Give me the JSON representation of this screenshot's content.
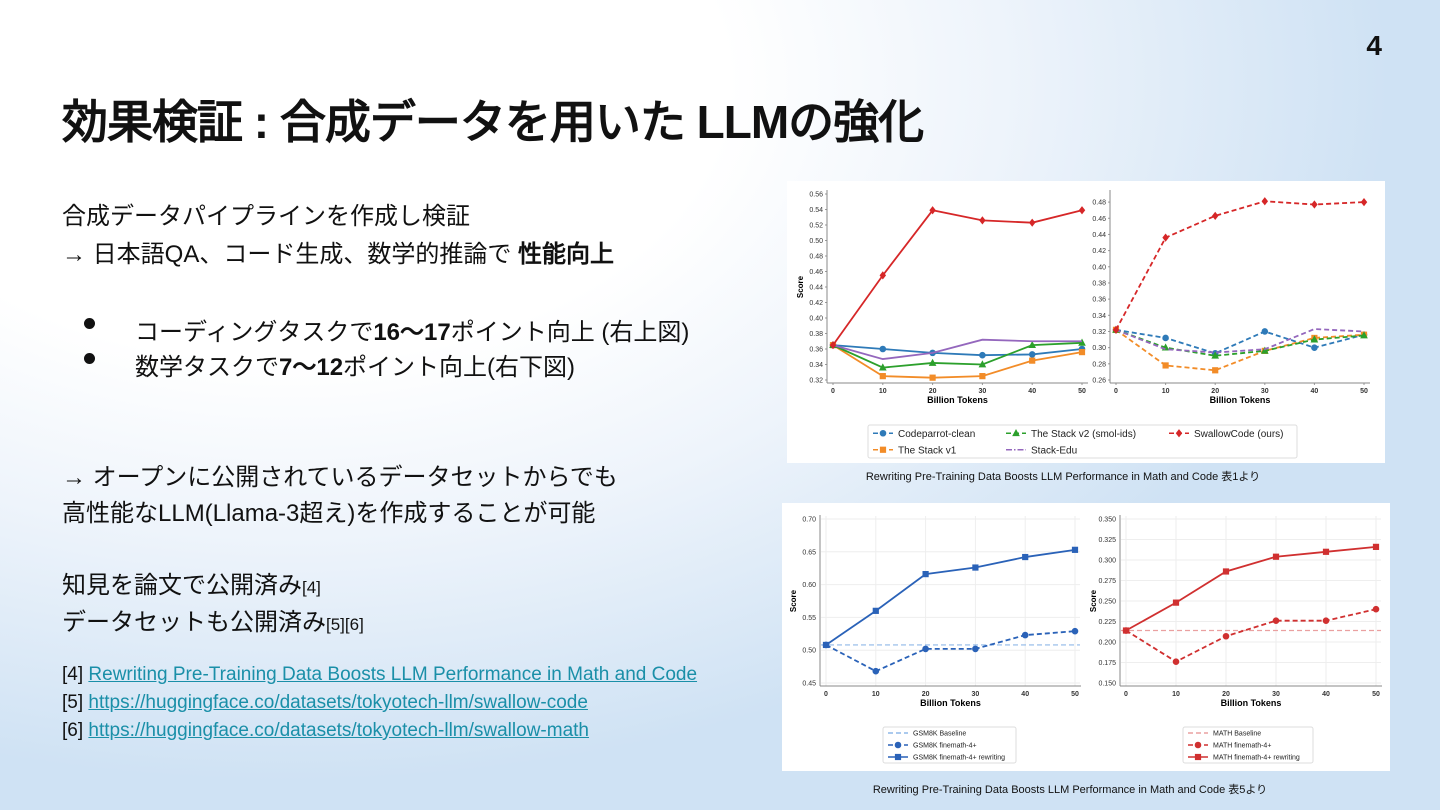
{
  "page_number": "4",
  "title": "効果検証 : 合成データを用いた LLMの強化",
  "intro": [
    [
      {
        "text": "合成データパイプラインを作成し検証"
      }
    ],
    [
      {
        "text": "→ 日本語QA、コード生成、数学的推論で "
      },
      {
        "text": "性能向上",
        "bold": true
      }
    ]
  ],
  "bullets": [
    [
      {
        "text": "コーディングタスクで"
      },
      {
        "text": "16〜17",
        "bold": true
      },
      {
        "text": "ポイント向上 (右上図)"
      }
    ],
    [
      {
        "text": "数学タスクで"
      },
      {
        "text": "7〜12",
        "bold": true
      },
      {
        "text": "ポイント向上(右下図)"
      }
    ]
  ],
  "claim": [
    [
      {
        "text": "→ オープンに公開されているデータセットからでも"
      }
    ],
    [
      {
        "text": "高性能なLLM(Llama-3超え)を作成することが可能"
      }
    ]
  ],
  "published": [
    [
      {
        "text": "知見を論文で公開済み"
      },
      {
        "text": "[4]",
        "small": true
      }
    ],
    [
      {
        "text": "データセットも公開済み"
      },
      {
        "text": "[5][6]",
        "small": true
      }
    ]
  ],
  "references": [
    {
      "tag": "[4]",
      "link": "Rewriting Pre-Training Data Boosts LLM Performance in Math and Code"
    },
    {
      "tag": "[5]",
      "link": "https://huggingface.co/datasets/tokyotech-llm/swallow-code"
    },
    {
      "tag": "[6]",
      "link": "https://huggingface.co/datasets/tokyotech-llm/swallow-math"
    }
  ],
  "figures": [
    {
      "caption": "Rewriting Pre-Training Data Boosts LLM Performance in Math and Code 表1より",
      "series": [
        {
          "name": "Codeparrot-clean",
          "color": "#2e7ab8",
          "marker": "circle",
          "linestyle": "dashed"
        },
        {
          "name": "The Stack v1",
          "color": "#f28c28",
          "marker": "square",
          "linestyle": "dashed"
        },
        {
          "name": "The Stack v2 (smol-ids)",
          "color": "#2ca02c",
          "marker": "triangle",
          "linestyle": "dashed"
        },
        {
          "name": "Stack-Edu",
          "color": "#9467bd",
          "marker": "none",
          "linestyle": "dashdot"
        },
        {
          "name": "SwallowCode (ours)",
          "color": "#d62728",
          "marker": "diamond",
          "linestyle": "dashed"
        }
      ],
      "panels": [
        {
          "ylabel": "Score",
          "xlabel": "Billion Tokens",
          "linestyle": "solid",
          "x": [
            0,
            10,
            20,
            30,
            40,
            50
          ],
          "xlim": [
            0,
            50
          ],
          "xticks": [
            0,
            10,
            20,
            30,
            40,
            50
          ],
          "ylim": [
            0.32,
            0.56
          ],
          "yticks": [
            0.32,
            0.34,
            0.36,
            0.38,
            {
              "value": 0.4,
              "label": "0.40"
            },
            0.42,
            0.44,
            0.46,
            0.48,
            {
              "value": 0.5,
              "label": "0.50"
            },
            0.52,
            0.54,
            0.56
          ],
          "values": [
            [
              0.365,
              0.36,
              0.355,
              0.352,
              0.353,
              0.36
            ],
            [
              0.365,
              0.325,
              0.323,
              0.325,
              0.345,
              0.356
            ],
            [
              0.365,
              0.336,
              0.342,
              0.34,
              0.365,
              0.368
            ],
            [
              0.365,
              0.347,
              0.355,
              0.372,
              0.37,
              0.37
            ],
            [
              0.365,
              0.455,
              0.539,
              0.526,
              0.523,
              0.539
            ]
          ]
        },
        {
          "xlabel": "Billion Tokens",
          "linestyle": "dashed",
          "x": [
            0,
            10,
            20,
            30,
            40,
            50
          ],
          "xlim": [
            0,
            50
          ],
          "xticks": [
            0,
            10,
            20,
            30,
            40,
            50
          ],
          "ylim": [
            0.26,
            0.49
          ],
          "yticks": [
            0.26,
            0.28,
            {
              "value": 0.3,
              "label": "0.30"
            },
            0.32,
            0.34,
            0.36,
            0.38,
            {
              "value": 0.4,
              "label": "0.40"
            },
            0.42,
            0.44,
            0.46,
            0.48
          ],
          "values": [
            [
              0.322,
              0.312,
              0.293,
              0.32,
              0.3,
              0.316
            ],
            [
              0.322,
              0.278,
              0.272,
              0.296,
              0.312,
              0.316
            ],
            [
              0.322,
              0.3,
              0.29,
              0.296,
              0.31,
              0.315
            ],
            [
              0.322,
              0.298,
              0.294,
              0.298,
              0.323,
              0.32
            ],
            [
              0.322,
              0.436,
              0.463,
              0.481,
              0.477,
              0.48
            ]
          ]
        }
      ]
    },
    {
      "caption": "Rewriting Pre-Training Data Boosts LLM Performance in Math and Code 表5より",
      "panels": [
        {
          "ylabel": "Score",
          "xlabel": "Billion Tokens",
          "grid": true,
          "x": [
            0,
            10,
            20,
            30,
            40,
            50
          ],
          "xlim": [
            0,
            50
          ],
          "xticks": [
            0,
            10,
            20,
            30,
            40,
            50
          ],
          "ylim": [
            0.45,
            0.7
          ],
          "yticks": [
            0.45,
            {
              "value": 0.5,
              "label": "0.50"
            },
            0.55,
            {
              "value": 0.6,
              "label": "0.60"
            },
            0.65,
            {
              "value": 0.7,
              "label": "0.70"
            }
          ],
          "series": [
            {
              "name": "GSM8K Baseline",
              "color": "#8fb8e8",
              "marker": "none",
              "linestyle": "dashed",
              "value": 0.508
            },
            {
              "name": "GSM8K finemath-4+",
              "color": "#2a62b8",
              "marker": "circle",
              "linestyle": "dashed",
              "values": [
                0.508,
                0.468,
                0.502,
                0.502,
                0.523,
                0.529
              ]
            },
            {
              "name": "GSM8K finemath-4+ rewriting",
              "color": "#2a62b8",
              "marker": "square",
              "linestyle": "solid",
              "values": [
                0.508,
                0.56,
                0.616,
                0.626,
                0.642,
                0.653
              ]
            }
          ]
        },
        {
          "ylabel": "Score",
          "xlabel": "Billion Tokens",
          "grid": true,
          "x": [
            0,
            10,
            20,
            30,
            40,
            50
          ],
          "xlim": [
            0,
            50
          ],
          "xticks": [
            0,
            10,
            20,
            30,
            40,
            50
          ],
          "ylim": [
            0.15,
            0.35
          ],
          "yticks": [
            {
              "value": 0.15,
              "label": "0.150"
            },
            0.175,
            {
              "value": 0.2,
              "label": "0.200"
            },
            0.225,
            {
              "value": 0.25,
              "label": "0.250"
            },
            0.275,
            {
              "value": 0.3,
              "label": "0.300"
            },
            0.325,
            {
              "value": 0.35,
              "label": "0.350"
            }
          ],
          "series": [
            {
              "name": "MATH Baseline",
              "color": "#eaa0a0",
              "marker": "none",
              "linestyle": "dashed",
              "value": 0.214
            },
            {
              "name": "MATH finemath-4+",
              "color": "#d03030",
              "marker": "circle",
              "linestyle": "dashed",
              "values": [
                0.214,
                0.176,
                0.207,
                0.226,
                0.226,
                0.24
              ]
            },
            {
              "name": "MATH finemath-4+ rewriting",
              "color": "#d03030",
              "marker": "square",
              "linestyle": "solid",
              "values": [
                0.214,
                0.248,
                0.286,
                0.304,
                0.31,
                0.316
              ]
            }
          ]
        }
      ]
    }
  ]
}
